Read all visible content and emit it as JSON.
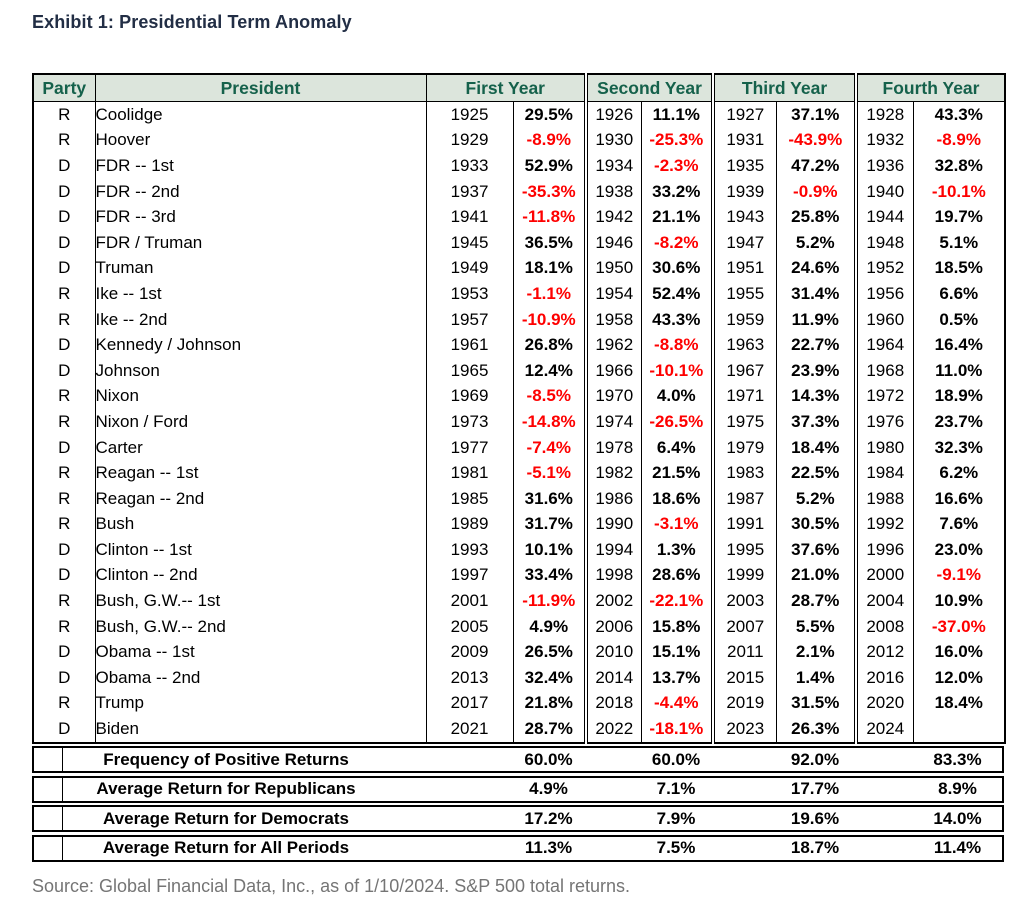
{
  "title": "Exhibit 1: Presidential Term Anomaly",
  "source": "Source: Global Financial Data, Inc., as of 1/10/2024. S&P 500 total returns.",
  "colors": {
    "header_bg": "#dce5dc",
    "header_text": "#15614b",
    "negative_return": "#fe0000",
    "positive_return": "#000000",
    "title_text": "#222e45",
    "source_text": "#757575",
    "border": "#000000"
  },
  "chart_data": {
    "type": "table",
    "headers": {
      "party": "Party",
      "president": "President",
      "groups": [
        "First Year",
        "Second Year",
        "Third Year",
        "Fourth Year"
      ]
    },
    "rows": [
      {
        "party": "R",
        "president": "Coolidge",
        "years": [
          {
            "year": "1925",
            "ret": "29.5%"
          },
          {
            "year": "1926",
            "ret": "11.1%"
          },
          {
            "year": "1927",
            "ret": "37.1%"
          },
          {
            "year": "1928",
            "ret": "43.3%"
          }
        ]
      },
      {
        "party": "R",
        "president": "Hoover",
        "years": [
          {
            "year": "1929",
            "ret": "-8.9%"
          },
          {
            "year": "1930",
            "ret": "-25.3%"
          },
          {
            "year": "1931",
            "ret": "-43.9%"
          },
          {
            "year": "1932",
            "ret": "-8.9%"
          }
        ]
      },
      {
        "party": "D",
        "president": "FDR -- 1st",
        "years": [
          {
            "year": "1933",
            "ret": "52.9%"
          },
          {
            "year": "1934",
            "ret": "-2.3%"
          },
          {
            "year": "1935",
            "ret": "47.2%"
          },
          {
            "year": "1936",
            "ret": "32.8%"
          }
        ]
      },
      {
        "party": "D",
        "president": "FDR -- 2nd",
        "years": [
          {
            "year": "1937",
            "ret": "-35.3%"
          },
          {
            "year": "1938",
            "ret": "33.2%"
          },
          {
            "year": "1939",
            "ret": "-0.9%"
          },
          {
            "year": "1940",
            "ret": "-10.1%"
          }
        ]
      },
      {
        "party": "D",
        "president": "FDR -- 3rd",
        "years": [
          {
            "year": "1941",
            "ret": "-11.8%"
          },
          {
            "year": "1942",
            "ret": "21.1%"
          },
          {
            "year": "1943",
            "ret": "25.8%"
          },
          {
            "year": "1944",
            "ret": "19.7%"
          }
        ]
      },
      {
        "party": "D",
        "president": "FDR / Truman",
        "years": [
          {
            "year": "1945",
            "ret": "36.5%"
          },
          {
            "year": "1946",
            "ret": "-8.2%"
          },
          {
            "year": "1947",
            "ret": "5.2%"
          },
          {
            "year": "1948",
            "ret": "5.1%"
          }
        ]
      },
      {
        "party": "D",
        "president": "Truman",
        "years": [
          {
            "year": "1949",
            "ret": "18.1%"
          },
          {
            "year": "1950",
            "ret": "30.6%"
          },
          {
            "year": "1951",
            "ret": "24.6%"
          },
          {
            "year": "1952",
            "ret": "18.5%"
          }
        ]
      },
      {
        "party": "R",
        "president": "Ike -- 1st",
        "years": [
          {
            "year": "1953",
            "ret": "-1.1%"
          },
          {
            "year": "1954",
            "ret": "52.4%"
          },
          {
            "year": "1955",
            "ret": "31.4%"
          },
          {
            "year": "1956",
            "ret": "6.6%"
          }
        ]
      },
      {
        "party": "R",
        "president": "Ike -- 2nd",
        "years": [
          {
            "year": "1957",
            "ret": "-10.9%"
          },
          {
            "year": "1958",
            "ret": "43.3%"
          },
          {
            "year": "1959",
            "ret": "11.9%"
          },
          {
            "year": "1960",
            "ret": "0.5%"
          }
        ]
      },
      {
        "party": "D",
        "president": "Kennedy / Johnson",
        "years": [
          {
            "year": "1961",
            "ret": "26.8%"
          },
          {
            "year": "1962",
            "ret": "-8.8%"
          },
          {
            "year": "1963",
            "ret": "22.7%"
          },
          {
            "year": "1964",
            "ret": "16.4%"
          }
        ]
      },
      {
        "party": "D",
        "president": "Johnson",
        "years": [
          {
            "year": "1965",
            "ret": "12.4%"
          },
          {
            "year": "1966",
            "ret": "-10.1%"
          },
          {
            "year": "1967",
            "ret": "23.9%"
          },
          {
            "year": "1968",
            "ret": "11.0%"
          }
        ]
      },
      {
        "party": "R",
        "president": "Nixon",
        "years": [
          {
            "year": "1969",
            "ret": "-8.5%"
          },
          {
            "year": "1970",
            "ret": "4.0%"
          },
          {
            "year": "1971",
            "ret": "14.3%"
          },
          {
            "year": "1972",
            "ret": "18.9%"
          }
        ]
      },
      {
        "party": "R",
        "president": "Nixon / Ford",
        "years": [
          {
            "year": "1973",
            "ret": "-14.8%"
          },
          {
            "year": "1974",
            "ret": "-26.5%"
          },
          {
            "year": "1975",
            "ret": "37.3%"
          },
          {
            "year": "1976",
            "ret": "23.7%"
          }
        ]
      },
      {
        "party": "D",
        "president": "Carter",
        "years": [
          {
            "year": "1977",
            "ret": "-7.4%"
          },
          {
            "year": "1978",
            "ret": "6.4%"
          },
          {
            "year": "1979",
            "ret": "18.4%"
          },
          {
            "year": "1980",
            "ret": "32.3%"
          }
        ]
      },
      {
        "party": "R",
        "president": "Reagan -- 1st",
        "years": [
          {
            "year": "1981",
            "ret": "-5.1%"
          },
          {
            "year": "1982",
            "ret": "21.5%"
          },
          {
            "year": "1983",
            "ret": "22.5%"
          },
          {
            "year": "1984",
            "ret": "6.2%"
          }
        ]
      },
      {
        "party": "R",
        "president": "Reagan -- 2nd",
        "years": [
          {
            "year": "1985",
            "ret": "31.6%"
          },
          {
            "year": "1986",
            "ret": "18.6%"
          },
          {
            "year": "1987",
            "ret": "5.2%"
          },
          {
            "year": "1988",
            "ret": "16.6%"
          }
        ]
      },
      {
        "party": "R",
        "president": "Bush",
        "years": [
          {
            "year": "1989",
            "ret": "31.7%"
          },
          {
            "year": "1990",
            "ret": "-3.1%"
          },
          {
            "year": "1991",
            "ret": "30.5%"
          },
          {
            "year": "1992",
            "ret": "7.6%"
          }
        ]
      },
      {
        "party": "D",
        "president": "Clinton -- 1st",
        "years": [
          {
            "year": "1993",
            "ret": "10.1%"
          },
          {
            "year": "1994",
            "ret": "1.3%"
          },
          {
            "year": "1995",
            "ret": "37.6%"
          },
          {
            "year": "1996",
            "ret": "23.0%"
          }
        ]
      },
      {
        "party": "D",
        "president": "Clinton -- 2nd",
        "years": [
          {
            "year": "1997",
            "ret": "33.4%"
          },
          {
            "year": "1998",
            "ret": "28.6%"
          },
          {
            "year": "1999",
            "ret": "21.0%"
          },
          {
            "year": "2000",
            "ret": "-9.1%"
          }
        ]
      },
      {
        "party": "R",
        "president": "Bush, G.W.-- 1st",
        "years": [
          {
            "year": "2001",
            "ret": "-11.9%"
          },
          {
            "year": "2002",
            "ret": "-22.1%"
          },
          {
            "year": "2003",
            "ret": "28.7%"
          },
          {
            "year": "2004",
            "ret": "10.9%"
          }
        ]
      },
      {
        "party": "R",
        "president": "Bush, G.W.-- 2nd",
        "years": [
          {
            "year": "2005",
            "ret": "4.9%"
          },
          {
            "year": "2006",
            "ret": "15.8%"
          },
          {
            "year": "2007",
            "ret": "5.5%"
          },
          {
            "year": "2008",
            "ret": "-37.0%"
          }
        ]
      },
      {
        "party": "D",
        "president": "Obama -- 1st",
        "years": [
          {
            "year": "2009",
            "ret": "26.5%"
          },
          {
            "year": "2010",
            "ret": "15.1%"
          },
          {
            "year": "2011",
            "ret": "2.1%"
          },
          {
            "year": "2012",
            "ret": "16.0%"
          }
        ]
      },
      {
        "party": "D",
        "president": "Obama -- 2nd",
        "years": [
          {
            "year": "2013",
            "ret": "32.4%"
          },
          {
            "year": "2014",
            "ret": "13.7%"
          },
          {
            "year": "2015",
            "ret": "1.4%"
          },
          {
            "year": "2016",
            "ret": "12.0%"
          }
        ]
      },
      {
        "party": "R",
        "president": "Trump",
        "years": [
          {
            "year": "2017",
            "ret": "21.8%"
          },
          {
            "year": "2018",
            "ret": "-4.4%"
          },
          {
            "year": "2019",
            "ret": "31.5%"
          },
          {
            "year": "2020",
            "ret": "18.4%"
          }
        ]
      },
      {
        "party": "D",
        "president": "Biden",
        "years": [
          {
            "year": "2021",
            "ret": "28.7%"
          },
          {
            "year": "2022",
            "ret": "-18.1%"
          },
          {
            "year": "2023",
            "ret": "26.3%"
          },
          {
            "year": "2024",
            "ret": ""
          }
        ]
      }
    ],
    "summary": [
      {
        "label": "Frequency of Positive Returns",
        "values": [
          "60.0%",
          "60.0%",
          "92.0%",
          "83.3%"
        ]
      },
      {
        "label": "Average Return for Republicans",
        "values": [
          "4.9%",
          "7.1%",
          "17.7%",
          "8.9%"
        ]
      },
      {
        "label": "Average Return for Democrats",
        "values": [
          "17.2%",
          "7.9%",
          "19.6%",
          "14.0%"
        ]
      },
      {
        "label": "Average Return for All Periods",
        "values": [
          "11.3%",
          "7.5%",
          "18.7%",
          "11.4%"
        ]
      }
    ]
  }
}
